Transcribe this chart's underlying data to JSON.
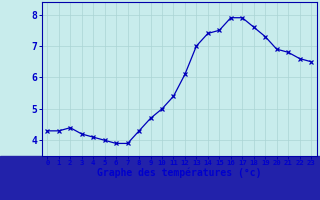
{
  "hours": [
    0,
    1,
    2,
    3,
    4,
    5,
    6,
    7,
    8,
    9,
    10,
    11,
    12,
    13,
    14,
    15,
    16,
    17,
    18,
    19,
    20,
    21,
    22,
    23
  ],
  "temps": [
    4.3,
    4.3,
    4.4,
    4.2,
    4.1,
    4.0,
    3.9,
    3.9,
    4.3,
    4.7,
    5.0,
    5.4,
    6.1,
    7.0,
    7.4,
    7.5,
    7.9,
    7.9,
    7.6,
    7.3,
    6.9,
    6.8,
    6.6,
    6.5
  ],
  "line_color": "#0000bb",
  "marker": "x",
  "bg_color": "#c8ecec",
  "grid_color": "#aad4d4",
  "xlabel": "Graphe des températures (°c)",
  "xlabel_color": "#0000cc",
  "tick_color": "#0000cc",
  "ylim": [
    3.5,
    8.4
  ],
  "yticks": [
    4,
    5,
    6,
    7,
    8
  ],
  "border_color": "#0000aa",
  "bottom_band_color": "#3333bb",
  "label_bg_color": "#2222aa"
}
